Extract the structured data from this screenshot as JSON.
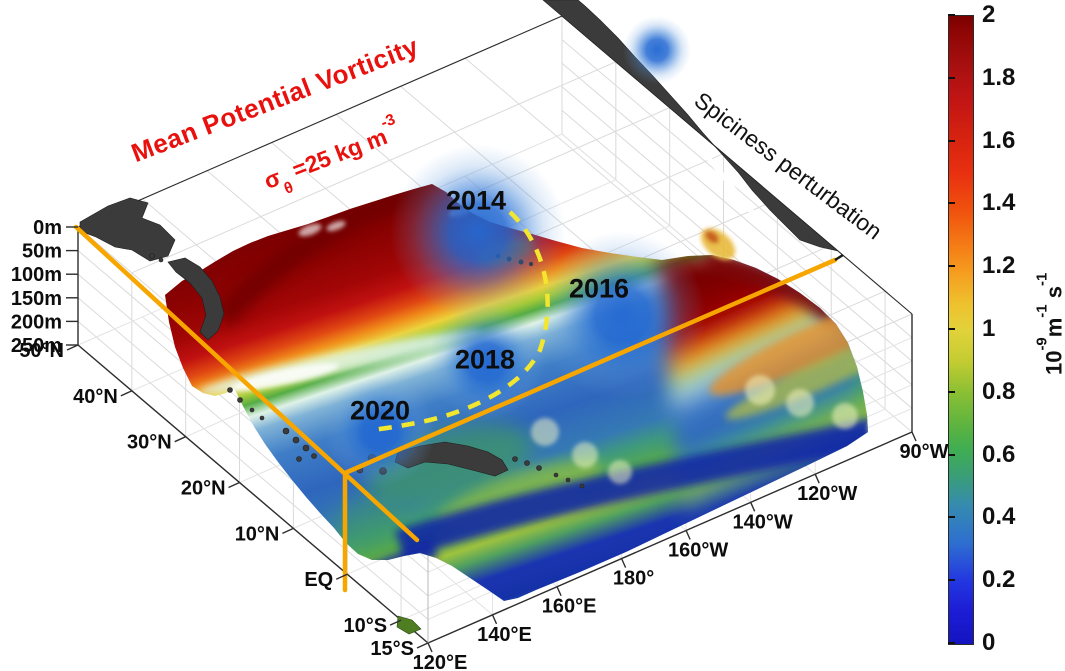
{
  "header": {
    "title_line1": "Mean Potential Vorticity",
    "sigma": "σ",
    "sigma_sub": "θ",
    "sigma_rest": " =25 kg m",
    "sigma_exp": "-3"
  },
  "annotations": {
    "spiciness": "Spiciness perturbation",
    "years": [
      "2014",
      "2016",
      "2018",
      "2020"
    ]
  },
  "axes": {
    "depth_ticks": [
      "0m",
      "50m",
      "100m",
      "150m",
      "200m",
      "250m"
    ],
    "lat_ticks": [
      "50°N",
      "40°N",
      "30°N",
      "20°N",
      "10°N",
      "EQ",
      "10°S",
      "15°S"
    ],
    "lon_ticks": [
      "120°E",
      "140°E",
      "160°E",
      "180°",
      "160°W",
      "140°W",
      "120°W",
      "90°W"
    ]
  },
  "colorbar": {
    "ticks": [
      "2",
      "1.8",
      "1.6",
      "1.4",
      "1.2",
      "1",
      "0.8",
      "0.6",
      "0.4",
      "0.2",
      "0"
    ],
    "unit_base": "10",
    "unit_base_exp": "-9",
    "unit_m": "m",
    "unit_m_exp": "-1",
    "unit_s": " s",
    "unit_s_exp": "-1"
  },
  "colors": {
    "title_red": "#e8110d",
    "section_orange": "#f7a600",
    "pathway_yellow": "#f2e62e",
    "land_gray": "#3b3b3b",
    "spiciness_blob_blue": "#2369d2"
  },
  "chart_data": {
    "type": "heatmap",
    "subtype": "3d-isopycnal-surface-map",
    "title": "Mean Potential Vorticity",
    "isopycnal_surface": "sigma-theta = 25 kg m-3",
    "colorbar": {
      "label": "10^-9 m^-1 s^-1",
      "min": 0,
      "max": 2,
      "ticks": [
        2,
        1.8,
        1.6,
        1.4,
        1.2,
        1,
        0.8,
        0.6,
        0.4,
        0.2,
        0
      ],
      "colormap": "dark-red high values in north, orange-yellow-green mid-latitudes, white-cyan subtropical front band, blue subtropical gyre, green near 5-10N, dark blue equatorial band, teal at front edge"
    },
    "axes": {
      "depth_m": [
        0,
        50,
        100,
        150,
        200,
        250
      ],
      "latitude_ticks": [
        "50°N",
        "40°N",
        "30°N",
        "20°N",
        "10°N",
        "EQ",
        "10°S",
        "15°S"
      ],
      "longitude_ticks": [
        "120°E",
        "140°E",
        "160°E",
        "180°",
        "160°W",
        "140°W",
        "120°W",
        "90°W"
      ],
      "grid": true
    },
    "annotations": {
      "spiciness_label": "Spiciness perturbation",
      "spiciness_events": [
        {
          "year": "2014",
          "approx_location": "northeast Pacific near 35N 150W"
        },
        {
          "year": "2016",
          "approx_location": "eastern subtropical Pacific near 25N 140W"
        },
        {
          "year": "2018",
          "approx_location": "central subtropical Pacific near 20N 170W"
        },
        {
          "year": "2020",
          "approx_location": "western subtropical Pacific near 20N 150E"
        }
      ],
      "pathway": "yellow dashed arc from 2014 southwestward through 2016 and 2018 to 2020",
      "section_lines": "orange lines marking vertical section locations on the surface"
    }
  }
}
